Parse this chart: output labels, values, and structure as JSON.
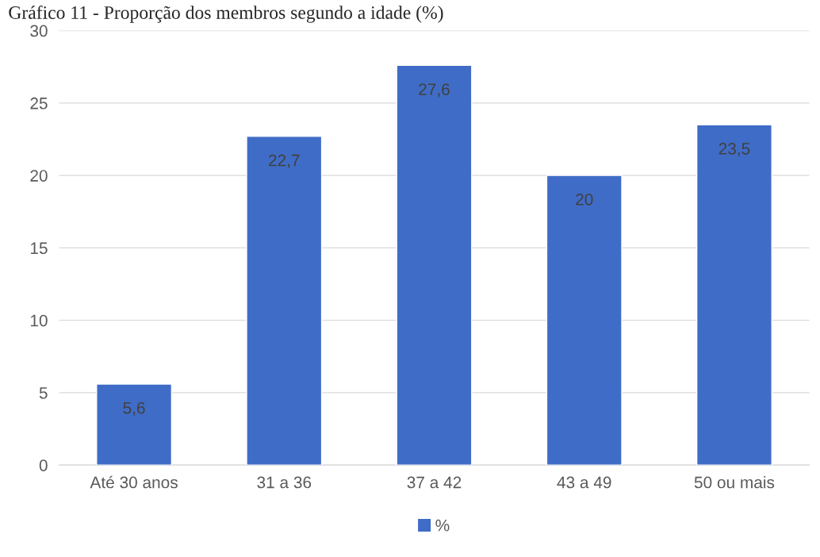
{
  "chart_data": {
    "type": "bar",
    "title": "Gráfico 11 - Proporção dos membros segundo a idade (%)",
    "categories": [
      "Até 30 anos",
      "31 a 36",
      "37 a 42",
      "43 a 49",
      "50 ou mais"
    ],
    "series": [
      {
        "name": "%",
        "color": "#3f6cc6",
        "values": [
          5.6,
          22.7,
          27.6,
          20,
          23.5
        ]
      }
    ],
    "value_labels": [
      "5,6",
      "22,7",
      "27,6",
      "20",
      "23,5"
    ],
    "ylim": [
      0,
      30
    ],
    "yticks": [
      0,
      5,
      10,
      15,
      20,
      25,
      30
    ],
    "grid": "y",
    "legend": "bottom"
  }
}
